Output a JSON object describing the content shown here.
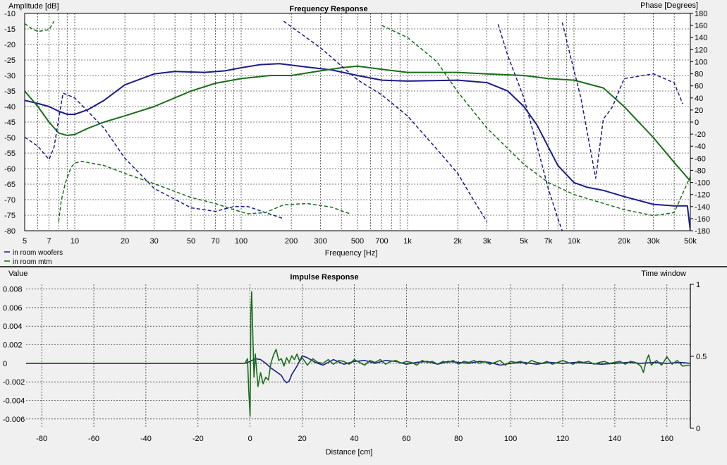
{
  "colors": {
    "background": "#f0f0f0",
    "plot_bg": "#ffffff",
    "grid": "#000000",
    "woofers": "#1c1c8c",
    "mtm": "#1a6e1a",
    "divider": "#000000"
  },
  "frequency_panel": {
    "title": "Frequency Response",
    "ylabel": "Amplitude [dB]",
    "y2label": "Phase [Degrees]",
    "xlabel": "Frequency [Hz]",
    "legend": [
      "in room woofers",
      "in room mtm"
    ]
  },
  "impulse_panel": {
    "title": "Impulse Response",
    "ylabel": "Value",
    "y2label": "Time window",
    "xlabel": "Distance [cm]"
  },
  "chart_data": [
    {
      "type": "line",
      "title": "Frequency Response",
      "xlabel": "Frequency [Hz]",
      "ylabel": "Amplitude [dB]",
      "y2label": "Phase [Degrees]",
      "xscale": "log",
      "xlim": [
        5,
        50000
      ],
      "ylim": [
        -80,
        -10
      ],
      "y2lim": [
        -180,
        180
      ],
      "grid": true,
      "legend_position": "bottom-left",
      "x_ticks": [
        5,
        7,
        10,
        20,
        30,
        50,
        70,
        100,
        200,
        300,
        500,
        700,
        1000,
        2000,
        3000,
        5000,
        7000,
        10000,
        20000,
        30000,
        50000
      ],
      "x_tick_labels": [
        "5",
        "7",
        "10",
        "20",
        "30",
        "50",
        "70",
        "100",
        "200",
        "300",
        "500",
        "700",
        "1k",
        "2k",
        "3k",
        "5k",
        "7k",
        "10k",
        "20k",
        "30k",
        "50k"
      ],
      "y_ticks": [
        -10,
        -15,
        -20,
        -25,
        -30,
        -35,
        -40,
        -45,
        -50,
        -55,
        -60,
        -65,
        -70,
        -75,
        -80
      ],
      "y2_ticks": [
        180,
        160,
        140,
        120,
        100,
        80,
        60,
        40,
        20,
        0,
        -20,
        -40,
        -60,
        -80,
        -100,
        -120,
        -140,
        -160,
        -180
      ],
      "series": [
        {
          "name": "in room woofers",
          "kind": "magnitude",
          "color": "#1c1c8c",
          "dashed": false,
          "x": [
            5,
            6,
            7,
            8,
            9,
            10,
            12,
            15,
            20,
            30,
            40,
            60,
            80,
            100,
            130,
            170,
            250,
            350,
            500,
            700,
            1000,
            2000,
            3000,
            4000,
            5000,
            6000,
            7000,
            8000,
            10000,
            12000,
            15000,
            20000,
            30000,
            40000,
            48000,
            50000
          ],
          "y": [
            -38,
            -39,
            -40,
            -41.5,
            -42.5,
            -42.5,
            -41,
            -38,
            -33,
            -29.5,
            -28.7,
            -29,
            -28.5,
            -27.5,
            -26.5,
            -26.2,
            -27.3,
            -28.2,
            -30,
            -31.5,
            -31.8,
            -31.5,
            -32.3,
            -35,
            -40,
            -46,
            -53,
            -59,
            -64.5,
            -66,
            -67,
            -69,
            -71.5,
            -72,
            -72,
            -80
          ]
        },
        {
          "name": "in room mtm",
          "kind": "magnitude",
          "color": "#1a6e1a",
          "dashed": false,
          "x": [
            5,
            6,
            7,
            8,
            9,
            10,
            12,
            15,
            20,
            30,
            50,
            70,
            100,
            150,
            200,
            300,
            400,
            500,
            700,
            1000,
            2000,
            3000,
            5000,
            7000,
            10000,
            15000,
            20000,
            30000,
            40000,
            50000
          ],
          "y": [
            -35,
            -40,
            -45,
            -48.5,
            -49.3,
            -49,
            -47,
            -45,
            -43,
            -40,
            -35,
            -32.5,
            -31,
            -30,
            -30,
            -28.5,
            -27.5,
            -27,
            -28,
            -29,
            -29,
            -29.5,
            -30,
            -31,
            -31.5,
            -34,
            -40,
            -50,
            -58,
            -64
          ]
        },
        {
          "name": "in room woofers phase",
          "kind": "phase",
          "color": "#1c1c8c",
          "dashed": true,
          "x": [
            5,
            6,
            7,
            7.5,
            8,
            8.5,
            10,
            15,
            20,
            30,
            50,
            70,
            90,
            110,
            140,
            180,
            null,
            180,
            300,
            500,
            700,
            1000,
            1500,
            2000,
            2500,
            3000,
            null,
            3500,
            4000,
            5000,
            6000,
            7000,
            8000,
            8500,
            null,
            8500,
            9500,
            11000,
            13500,
            15000,
            16000,
            17000,
            20000,
            30000,
            40000,
            45000
          ],
          "y": [
            -25,
            -40,
            -62,
            -42,
            5,
            48,
            40,
            -10,
            -60,
            -110,
            -142,
            -148,
            -140,
            -140,
            -150,
            -160,
            null,
            167,
            123,
            70,
            45,
            10,
            -45,
            -85,
            -130,
            -165,
            null,
            162,
            110,
            40,
            -40,
            -110,
            -160,
            -180,
            null,
            165,
            110,
            40,
            -93,
            5,
            15,
            25,
            72,
            80,
            65,
            30
          ]
        },
        {
          "name": "in room mtm phase",
          "kind": "phase",
          "color": "#1a6e1a",
          "dashed": true,
          "x": [
            5,
            5.5,
            6,
            7,
            7.5,
            null,
            8,
            8.3,
            8.8,
            9.5,
            10,
            11,
            15,
            20,
            30,
            50,
            70,
            90,
            110,
            140,
            180,
            250,
            350,
            450,
            null,
            700,
            1000,
            1500,
            2000,
            3000,
            5000,
            7000,
            10000,
            20000,
            30000,
            40000,
            50000
          ],
          "y": [
            163,
            155,
            150,
            153,
            167,
            null,
            -165,
            -130,
            -100,
            -75,
            -68,
            -65,
            -72,
            -85,
            -102,
            -125,
            -135,
            -145,
            -152,
            -150,
            -137,
            -135,
            -141,
            -152,
            null,
            160,
            140,
            100,
            50,
            -10,
            -70,
            -100,
            -120,
            -145,
            -155,
            -150,
            -90
          ]
        }
      ]
    },
    {
      "type": "line",
      "title": "Impulse Response",
      "xlabel": "Distance [cm]",
      "ylabel": "Value",
      "y2label": "Time window",
      "xlim": [
        -86,
        169
      ],
      "ylim": [
        -0.007,
        0.0085
      ],
      "y2lim": [
        0,
        1
      ],
      "grid": true,
      "x_ticks": [
        -80,
        -60,
        -40,
        -20,
        0,
        20,
        40,
        60,
        80,
        100,
        120,
        140,
        160
      ],
      "y_ticks": [
        0.008,
        0.006,
        0.004,
        0.002,
        0,
        -0.002,
        -0.004,
        -0.006
      ],
      "y_tick_labels": [
        "0.008",
        "0.006",
        "0.004",
        "0.002",
        "0",
        "-0.002",
        "-0.004",
        "-0.006"
      ],
      "y2_ticks": [
        1,
        0.5,
        0
      ],
      "y2_tick_labels": [
        "1",
        "0.5",
        "0"
      ],
      "series": [
        {
          "name": "in room woofers",
          "color": "#1c1c8c",
          "x": [
            -86,
            -2,
            0,
            2,
            4,
            6,
            8,
            10,
            12,
            13,
            14,
            15,
            16,
            18,
            20,
            22,
            25,
            28,
            32,
            36,
            40,
            44,
            48,
            52,
            56,
            60,
            64,
            68,
            72,
            76,
            80,
            84,
            88,
            92,
            96,
            100,
            105,
            110,
            115,
            120,
            125,
            130,
            135,
            140,
            145,
            150,
            155,
            160,
            165,
            169
          ],
          "y": [
            0,
            0,
            0.0002,
            0.0005,
            0.0004,
            0,
            -0.0005,
            -0.0009,
            -0.0013,
            -0.0018,
            -0.0021,
            -0.0019,
            -0.0012,
            -0.0003,
            0.0008,
            0.0006,
            0.0001,
            -0.0002,
            0.0004,
            -0.0001,
            0.0002,
            0.0003,
            0,
            0.0003,
            0.0002,
            -0.0001,
            0.0001,
            0.0002,
            -0.0001,
            0.0002,
            0.0001,
            0,
            0.0002,
            0.0001,
            -0.0002,
            0,
            0.0001,
            -0.0001,
            0.0001,
            0,
            0.0001,
            0,
            -0.0001,
            0,
            0.0001,
            0,
            0.0001,
            0,
            0.0001,
            0
          ]
        },
        {
          "name": "in room mtm",
          "color": "#1a6e1a",
          "x": [
            -86,
            -2,
            -1,
            -0.5,
            0,
            0.3,
            0.6,
            1,
            1.5,
            2,
            3,
            4,
            5,
            6,
            7,
            8,
            9,
            10,
            11,
            12,
            13,
            14,
            15,
            16,
            17,
            18,
            19,
            20,
            22,
            24,
            26,
            28,
            30,
            32,
            34,
            36,
            38,
            40,
            42,
            44,
            46,
            48,
            50,
            52,
            54,
            56,
            58,
            60,
            62,
            64,
            66,
            68,
            70,
            72,
            74,
            76,
            78,
            80,
            82,
            84,
            86,
            88,
            90,
            92,
            94,
            96,
            98,
            100,
            102,
            104,
            106,
            108,
            110,
            112,
            114,
            116,
            118,
            120,
            122,
            124,
            126,
            128,
            130,
            132,
            134,
            136,
            138,
            140,
            142,
            144,
            146,
            148,
            150,
            151,
            152,
            153,
            154,
            156,
            158,
            160,
            162,
            164,
            166,
            169
          ],
          "y": [
            0,
            0,
            0.0005,
            -0.003,
            -0.0057,
            0.0055,
            0.0077,
            0.0035,
            -0.0015,
            0.001,
            -0.0025,
            -0.001,
            -0.0022,
            -0.0015,
            -0.0018,
            0,
            0.0009,
            0.0015,
            0.0003,
            0.0005,
            -0.0003,
            0.0006,
            0.0001,
            0.0008,
            0.0004,
            0.001,
            0.0002,
            0.0006,
            -0.0002,
            0.0005,
            0.0001,
            0,
            0.0004,
            -0.0001,
            0.0003,
            0.0002,
            -0.0001,
            0.0004,
            0.0001,
            -0.0002,
            0.0003,
            0.0001,
            0.0004,
            -0.0001,
            0.0002,
            0.0003,
            0,
            0.0002,
            0.0001,
            -0.0002,
            0.0003,
            0.0001,
            0.0002,
            -0.0001,
            0.0002,
            0.0001,
            0.0003,
            -0.0001,
            0.0002,
            0.0001,
            0.0003,
            0,
            0.0002,
            -0.0001,
            0.0001,
            0.0003,
            -0.0002,
            0.0002,
            0.0001,
            0.0002,
            -0.0001,
            0.0003,
            0.0001,
            0,
            0.0002,
            -0.0001,
            0.0001,
            0.0003,
            0.0001,
            -0.0001,
            0.0002,
            0.0001,
            0.0002,
            -0.0001,
            0.0001,
            0.0002,
            0,
            0.0001,
            0.0002,
            -0.0001,
            0.0002,
            0.0001,
            -0.0003,
            -0.001,
            0.0002,
            0.0009,
            -0.0002,
            0.0003,
            -0.0002,
            0.0007,
            -0.0001,
            0.0003,
            -0.0003,
            -0.0002
          ]
        }
      ]
    }
  ]
}
